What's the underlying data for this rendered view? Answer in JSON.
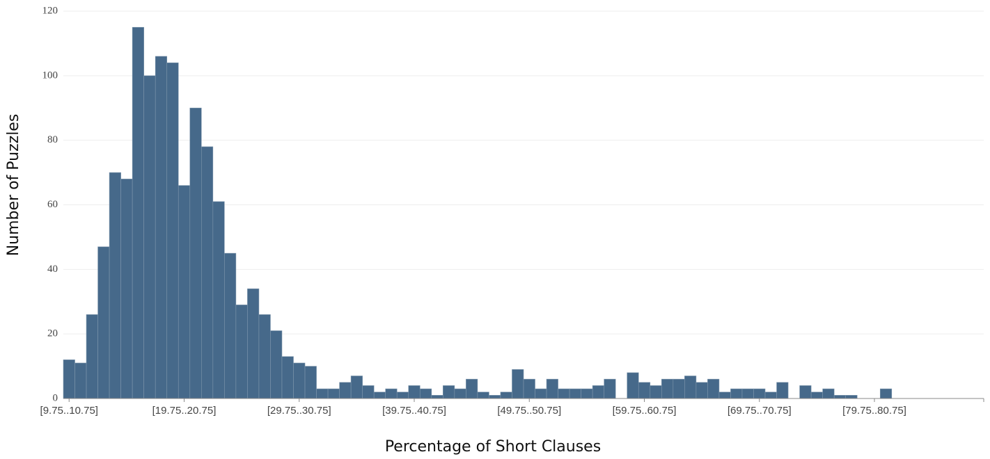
{
  "chart_data": {
    "type": "bar",
    "x_label": "Percentage of Short Clauses",
    "y_label": "Number of Puzzles",
    "categories": [
      "[9.75..10.75]",
      null,
      null,
      null,
      null,
      null,
      null,
      null,
      null,
      null,
      "[19.75..20.75]",
      null,
      null,
      null,
      null,
      null,
      null,
      null,
      null,
      null,
      "[29.75..30.75]",
      null,
      null,
      null,
      null,
      null,
      null,
      null,
      null,
      null,
      "[39.75..40.75]",
      null,
      null,
      null,
      null,
      null,
      null,
      null,
      null,
      null,
      "[49.75..50.75]",
      null,
      null,
      null,
      null,
      null,
      null,
      null,
      null,
      null,
      "[59.75..60.75]",
      null,
      null,
      null,
      null,
      null,
      null,
      null,
      null,
      null,
      "[69.75..70.75]",
      null,
      null,
      null,
      null,
      null,
      null,
      null,
      null,
      null,
      "[79.75..80.75]",
      null,
      null,
      null,
      null,
      null,
      null,
      null,
      null,
      null
    ],
    "values": [
      12,
      11,
      26,
      47,
      70,
      68,
      115,
      100,
      106,
      104,
      66,
      90,
      78,
      61,
      45,
      29,
      34,
      26,
      21,
      13,
      11,
      10,
      3,
      3,
      5,
      7,
      4,
      2,
      3,
      2,
      4,
      3,
      1,
      4,
      3,
      6,
      2,
      1,
      2,
      9,
      6,
      3,
      6,
      3,
      3,
      3,
      4,
      6,
      0,
      8,
      5,
      4,
      6,
      6,
      7,
      5,
      6,
      2,
      3,
      3,
      3,
      2,
      5,
      0,
      4,
      2,
      3,
      1,
      1,
      0,
      0,
      3,
      0,
      0,
      0,
      0,
      0,
      0,
      0,
      0
    ],
    "color": "#46698a",
    "ylim": [
      0,
      120
    ],
    "yticks": [
      0,
      20,
      40,
      60,
      80,
      100,
      120
    ],
    "grid": true
  }
}
